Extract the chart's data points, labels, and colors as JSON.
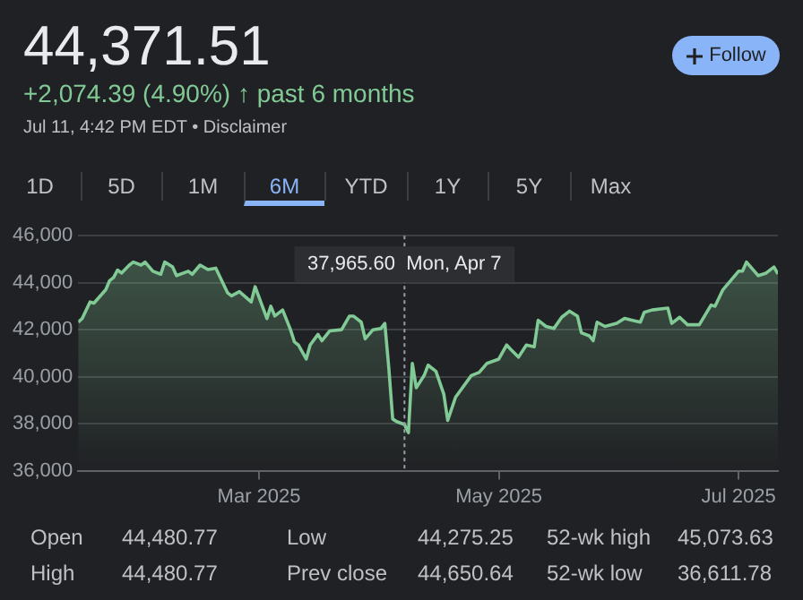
{
  "chart_data": {
    "type": "area",
    "title": "44,371.51",
    "subtitle": "+2,074.39 (4.90%) ↑ past 6 months",
    "annotations": [
      "Jul 11, 4:42 PM EDT • Disclaimer",
      "Follow",
      "1D",
      "5D",
      "1M",
      "6M",
      "YTD",
      "1Y",
      "5Y",
      "Max",
      "Open",
      "44,480.77",
      "Low",
      "44,275.25",
      "52-wk high",
      "45,073.63",
      "High",
      "44,480.77",
      "Prev close",
      "44,650.64",
      "52-wk low",
      "36,611.78",
      "37,965.60  Mon, Apr 7"
    ],
    "x": [
      "2025-01-14",
      "2025-01-15",
      "2025-01-17",
      "2025-01-18",
      "2025-01-21",
      "2025-01-22",
      "2025-01-23",
      "2025-01-24",
      "2025-01-25",
      "2025-01-27",
      "2025-01-28",
      "2025-01-30",
      "2025-01-31",
      "2025-02-02",
      "2025-02-04",
      "2025-02-05",
      "2025-02-07",
      "2025-02-08",
      "2025-02-11",
      "2025-02-12",
      "2025-02-14",
      "2025-02-16",
      "2025-02-18",
      "2025-02-21",
      "2025-02-22",
      "2025-02-24",
      "2025-02-27",
      "2025-02-28",
      "2025-03-03",
      "2025-03-04",
      "2025-03-05",
      "2025-03-07",
      "2025-03-09",
      "2025-03-10",
      "2025-03-11",
      "2025-03-13",
      "2025-03-14",
      "2025-03-16",
      "2025-03-17",
      "2025-03-19",
      "2025-03-22",
      "2025-03-24",
      "2025-03-25",
      "2025-03-27",
      "2025-03-28",
      "2025-03-30",
      "2025-04-01",
      "2025-04-02",
      "2025-04-03",
      "2025-04-04",
      "2025-04-05",
      "2025-04-07",
      "2025-04-08",
      "2025-04-09",
      "2025-04-10",
      "2025-04-12",
      "2025-04-13",
      "2025-04-15",
      "2025-04-17",
      "2025-04-18",
      "2025-04-20",
      "2025-04-24",
      "2025-04-26",
      "2025-04-28",
      "2025-05-01",
      "2025-05-03",
      "2025-05-04",
      "2025-05-06",
      "2025-05-08",
      "2025-05-10",
      "2025-05-11",
      "2025-05-13",
      "2025-05-15",
      "2025-05-17",
      "2025-05-19",
      "2025-05-21",
      "2025-05-22",
      "2025-05-24",
      "2025-05-25",
      "2025-05-26",
      "2025-05-28",
      "2025-05-31",
      "2025-06-02",
      "2025-06-04",
      "2025-06-06",
      "2025-06-07",
      "2025-06-09",
      "2025-06-13",
      "2025-06-14",
      "2025-06-16",
      "2025-06-18",
      "2025-06-21",
      "2025-06-24",
      "2025-06-25",
      "2025-06-27",
      "2025-07-01",
      "2025-07-02",
      "2025-07-03",
      "2025-07-06",
      "2025-07-08",
      "2025-07-10",
      "2025-07-11"
    ],
    "series": [
      {
        "color": "#81c995",
        "values": [
          42320,
          42475,
          43180,
          43130,
          43700,
          44090,
          44220,
          44540,
          44410,
          44750,
          44880,
          44750,
          44880,
          44490,
          44360,
          44880,
          44670,
          44300,
          44490,
          44360,
          44750,
          44560,
          44620,
          43570,
          43440,
          43620,
          43180,
          43830,
          42475,
          43000,
          42580,
          42840,
          42000,
          41480,
          41350,
          40750,
          41350,
          41800,
          41530,
          41950,
          42000,
          42580,
          42580,
          42320,
          41610,
          42000,
          42050,
          42270,
          40400,
          38200,
          38090,
          37965.6,
          37620,
          40570,
          39530,
          40050,
          40490,
          40230,
          39260,
          38140,
          39130,
          40050,
          40180,
          40570,
          40750,
          41350,
          41170,
          40830,
          41350,
          41270,
          42400,
          42140,
          42050,
          42530,
          42790,
          42580,
          41870,
          41740,
          41530,
          42320,
          42140,
          42270,
          42480,
          42400,
          42320,
          42740,
          42840,
          42920,
          42270,
          42530,
          42210,
          42210,
          43050,
          43000,
          43700,
          44490,
          44490,
          44880,
          44300,
          44410,
          44670,
          44370
        ]
      }
    ],
    "xlim": [
      "2025-01-14",
      "2025-07-11"
    ],
    "xticks": [
      {
        "value": "2025-03-01",
        "label": "Mar 2025"
      },
      {
        "value": "2025-05-01",
        "label": "May 2025"
      },
      {
        "value": "2025-07-01",
        "label": "Jul 2025"
      }
    ],
    "ylim": [
      36000,
      46000
    ],
    "yticks": [
      {
        "value": 36000,
        "label": "36,000"
      },
      {
        "value": 38000,
        "label": "38,000"
      },
      {
        "value": 40000,
        "label": "40,000"
      },
      {
        "value": 42000,
        "label": "42,000"
      },
      {
        "value": 44000,
        "label": "44,000"
      },
      {
        "value": 46000,
        "label": "46,000"
      }
    ],
    "ref_lines": [
      {
        "axis": "x",
        "value": "2025-04-07",
        "color": "#9aa0a6",
        "line_style": "dotted"
      }
    ],
    "grid": "y",
    "legend": false,
    "marker": "none",
    "line_style": "solid"
  }
}
